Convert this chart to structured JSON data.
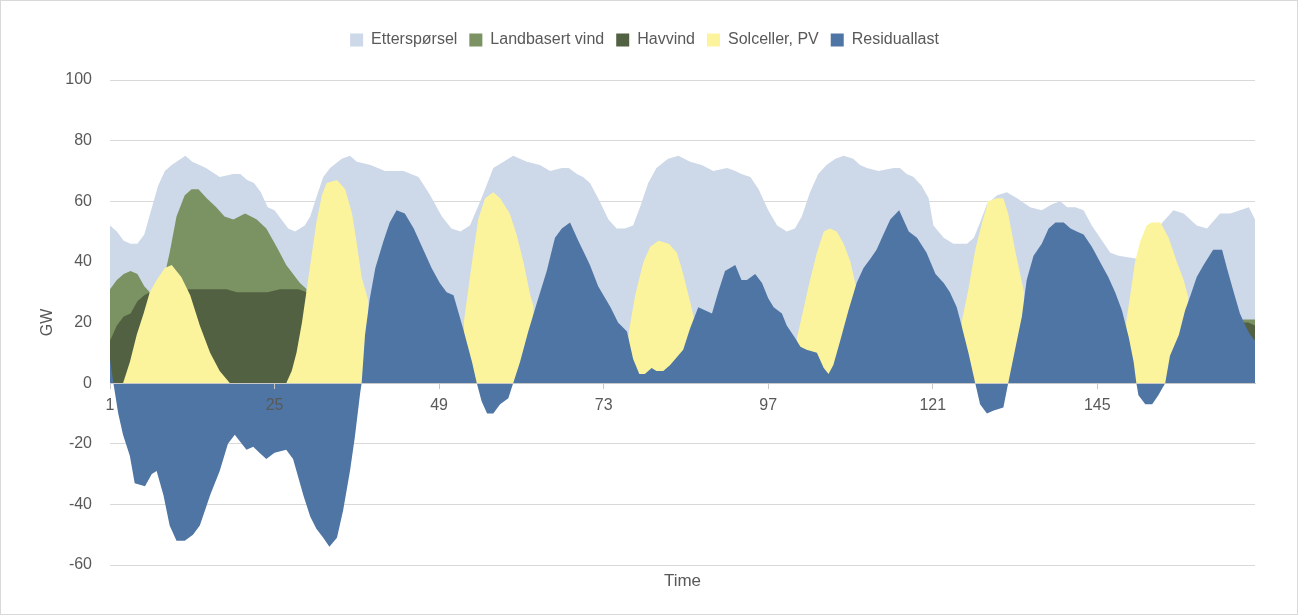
{
  "chart_data": {
    "type": "area",
    "xlabel": "Time",
    "ylabel": "GW",
    "xlim": [
      1,
      168
    ],
    "xticks": [
      1,
      25,
      49,
      73,
      97,
      121,
      145
    ],
    "ylim": [
      -60,
      100
    ],
    "yticks": [
      -60,
      -40,
      -20,
      0,
      20,
      40,
      60,
      80,
      100
    ],
    "grid": "y",
    "legend": "top",
    "series": [
      {
        "name": "Etterspørsel",
        "color": "#cdd8e8",
        "x": [
          1,
          2,
          3,
          4,
          5,
          6,
          7,
          8,
          9,
          10,
          12,
          13,
          15,
          17,
          19,
          20,
          21,
          22,
          23,
          24,
          25,
          26,
          27,
          28,
          29.4,
          30.2,
          31.2,
          32.1,
          33.1,
          34.8,
          36,
          37,
          39,
          41.1,
          43.8,
          46,
          47.7,
          49.4,
          50.8,
          52.1,
          53.5,
          55,
          55.7,
          56.9,
          58.4,
          59.8,
          61.8,
          63.7,
          65.2,
          66.9,
          67.9,
          69.1,
          70,
          71,
          72.2,
          73.7,
          74.9,
          76.1,
          77.3,
          78.3,
          79.5,
          80.7,
          82.4,
          83.9,
          85.6,
          87.3,
          89,
          91,
          92.2,
          93.1,
          94.4,
          95.6,
          97,
          98.3,
          99.7,
          100.9,
          101.9,
          103.1,
          104.3,
          105.5,
          106.8,
          108,
          109.4,
          110.4,
          111.4,
          113.1,
          115.3,
          116.2,
          117.2,
          118.2,
          119.4,
          120.4,
          121.1,
          122.6,
          124,
          126,
          127,
          127.9,
          128.9,
          130.4,
          131.8,
          133.3,
          135.2,
          136.9,
          138.4,
          139.6,
          140.6,
          141.8,
          143,
          144.2,
          145.7,
          146.9,
          148.1,
          150.8,
          154.5,
          156.1,
          157.6,
          159.5,
          161,
          162.9,
          164.4,
          165.8,
          167.1,
          168
        ],
        "values": [
          52,
          50,
          47,
          46,
          46,
          49,
          57,
          65,
          70,
          72,
          75,
          73,
          71,
          68,
          69,
          69,
          67,
          66,
          63,
          58,
          57,
          54,
          51,
          50,
          52,
          55,
          62,
          68,
          71,
          74,
          75,
          73,
          72,
          70,
          70,
          68,
          62,
          55,
          51,
          50,
          52,
          60,
          64,
          71,
          73,
          75,
          73,
          72,
          70,
          71,
          71,
          69,
          68,
          66,
          61,
          54,
          51,
          51,
          52,
          58,
          66,
          71,
          74,
          75,
          73,
          72,
          70,
          71,
          70,
          69,
          68,
          64,
          57,
          52,
          50,
          51,
          55,
          63,
          69,
          72,
          74,
          75,
          74,
          72,
          71,
          70,
          71,
          71,
          69,
          68,
          65,
          61,
          52,
          48,
          46,
          46,
          48,
          53,
          59,
          62,
          63,
          61,
          58,
          57,
          59,
          60,
          58,
          58,
          57,
          52,
          47,
          43,
          42,
          41,
          53,
          57,
          56,
          52,
          51,
          56,
          56,
          57,
          58,
          54
        ]
      },
      {
        "name": "Landbasert vind",
        "color": "#7b9262",
        "x": [
          1,
          2,
          3,
          4,
          5,
          6,
          6.8,
          8,
          9.2,
          9.7,
          10.7,
          11.9,
          12.9,
          13.9,
          15.1,
          16.5,
          17.7,
          19,
          20.7,
          22.4,
          23.8,
          25.3,
          26.7,
          27.7,
          28.7,
          29.7,
          100,
          166.2,
          167,
          168
        ],
        "values": [
          31,
          34,
          36,
          37,
          36,
          32,
          30,
          null,
          38,
          43,
          55,
          62,
          64,
          64,
          61,
          58,
          55,
          54,
          56,
          54,
          51,
          45,
          39,
          36,
          33,
          31,
          null,
          21,
          21,
          21
        ]
      },
      {
        "name": "Havvind",
        "color": "#526142",
        "x": [
          1,
          2,
          3,
          4,
          5,
          6,
          6.8,
          9,
          12.3,
          14,
          16,
          18,
          19.5,
          22,
          24,
          25.8,
          27.2,
          28.5,
          29.7,
          100,
          166.2,
          167,
          168
        ],
        "values": [
          14,
          19,
          22,
          23,
          27,
          29,
          30,
          null,
          31,
          31,
          31,
          31,
          30,
          30,
          30,
          31,
          31,
          31,
          30,
          null,
          20,
          20,
          19
        ]
      },
      {
        "name": "Solceller, PV",
        "color": "#fcf49c",
        "x": [
          2.9,
          3.9,
          4.9,
          5.9,
          6.8,
          7.8,
          9,
          10,
          11.4,
          12.7,
          14.1,
          15.6,
          17,
          18.5,
          22,
          26.7,
          27.5,
          28.2,
          29,
          29.7,
          30.4,
          31.1,
          31.9,
          32.6,
          34.1,
          35.3,
          36.3,
          37,
          37.7,
          38.7,
          45,
          52.6,
          53.8,
          54.7,
          55.7,
          56.9,
          57.9,
          59.3,
          60.3,
          61.3,
          62.3,
          62.8,
          70,
          76.6,
          77.6,
          78.8,
          79.8,
          81,
          82.5,
          83.7,
          84.6,
          85.6,
          86.2,
          95,
          101.2,
          102.1,
          103.1,
          104.1,
          105.1,
          106,
          107,
          108,
          109,
          109.8,
          118,
          125.2,
          126.2,
          127.2,
          128.2,
          129.1,
          130.3,
          131.3,
          132,
          133,
          134.3,
          142,
          149.2,
          149.8,
          150.5,
          151.3,
          152.2,
          152.9,
          154.2,
          155.4,
          156.6,
          157.6,
          158.3
        ],
        "values": [
          0,
          7,
          16,
          23,
          30,
          34,
          38,
          39,
          35,
          29,
          19,
          10,
          4,
          0,
          null,
          0,
          4,
          10,
          20,
          31,
          42,
          53,
          62,
          66,
          67,
          64,
          56,
          46,
          35,
          27,
          null,
          20,
          40,
          54,
          61,
          63,
          61,
          56,
          49,
          40,
          29,
          25,
          null,
          16,
          29,
          40,
          45,
          47,
          46,
          43,
          36,
          27,
          21,
          null,
          15,
          24,
          34,
          43,
          50,
          51,
          50,
          46,
          40,
          32,
          null,
          20,
          31,
          44,
          53,
          60,
          61,
          61,
          56,
          44,
          30,
          null,
          20,
          29,
          40,
          47,
          52,
          53,
          53,
          48,
          40,
          34,
          28
        ]
      },
      {
        "name": "Residuallast",
        "color": "#4e75a4",
        "x": [
          1,
          1.5,
          2.2,
          2.9,
          3.9,
          4.6,
          6.1,
          7.1,
          7.8,
          8.8,
          9.7,
          10.7,
          11.9,
          13.1,
          14.1,
          15.6,
          17,
          18.2,
          19.2,
          20.9,
          21.9,
          22.8,
          23.8,
          25,
          26.7,
          27.7,
          28.2,
          29.2,
          30.2,
          31.1,
          32.1,
          33,
          34.1,
          35,
          36,
          36.7,
          37.5,
          37.7,
          38.2,
          38.9,
          39.7,
          40.9,
          41.8,
          42.8,
          44,
          45.3,
          46.7,
          47.9,
          49.1,
          50.1,
          51.1,
          52.5,
          53.8,
          54.5,
          55.2,
          56,
          56.9,
          57.9,
          59.1,
          59.8,
          60.8,
          62,
          63.2,
          64.7,
          65.9,
          66.9,
          68.1,
          69.3,
          71,
          72.2,
          74,
          75.1,
          76.4,
          77.3,
          78.2,
          79,
          80,
          80.7,
          81.7,
          82.7,
          84.6,
          85.6,
          86.8,
          88.8,
          89.7,
          90.7,
          92.2,
          93.1,
          93.9,
          95.1,
          96.1,
          97,
          97.8,
          99,
          99.7,
          100.9,
          101.7,
          102.6,
          104.1,
          105.1,
          105.8,
          106.5,
          107.5,
          108.7,
          109.9,
          110.9,
          111.9,
          112.8,
          113.8,
          114.8,
          116.1,
          117.5,
          118.7,
          120.1,
          121.4,
          122.6,
          123.5,
          124.5,
          125.2,
          126.2,
          127.2,
          127.9,
          128.9,
          129.9,
          131.3,
          132,
          133,
          134,
          134.7,
          135.7,
          136.9,
          137.9,
          138.9,
          139.6,
          140.1,
          141.1,
          142,
          143,
          144.2,
          145.4,
          146.6,
          147.6,
          148.6,
          149.6,
          150.3,
          150.7,
          151,
          152,
          153,
          153.9,
          154.9,
          155.6,
          156.9,
          157.8,
          158.6,
          159.5,
          160.5,
          161.9,
          163.2,
          163.9,
          164.9,
          165.8,
          166.8,
          167.3,
          168
        ],
        "values": [
          8,
          0,
          -10,
          -17,
          -24,
          -33,
          -34,
          -30,
          -29,
          -37,
          -47,
          -52,
          -52,
          -50,
          -47,
          -37,
          -29,
          -20,
          -17,
          -22,
          -21,
          -23,
          -25,
          -23,
          -22,
          -25,
          -29,
          -37,
          -44,
          -48,
          -51,
          -54,
          -51,
          -42,
          -29,
          -18,
          -3,
          0,
          16,
          28,
          38,
          47,
          53,
          57,
          56,
          51,
          44,
          38,
          33,
          30,
          29,
          18,
          7,
          0,
          -6,
          -10,
          -10,
          -7,
          -5,
          0,
          7,
          17,
          26,
          37,
          48,
          51,
          53,
          47,
          39,
          32,
          25,
          20,
          17,
          8,
          3,
          3,
          5,
          4,
          4,
          6,
          11,
          18,
          25,
          23,
          30,
          37,
          39,
          34,
          34,
          36,
          33,
          28,
          25,
          23,
          19,
          15,
          12,
          11,
          10,
          5,
          3,
          6,
          14,
          24,
          33,
          38,
          41,
          44,
          49,
          54,
          57,
          50,
          48,
          43,
          36,
          33,
          30,
          25,
          19,
          10,
          0,
          -7,
          -10,
          -9,
          -8,
          0,
          11,
          22,
          34,
          42,
          46,
          51,
          53,
          53,
          53,
          51,
          50,
          49,
          45,
          40,
          35,
          30,
          24,
          15,
          7,
          0,
          -4,
          -7,
          -7,
          -4,
          0,
          9,
          16,
          24,
          29,
          35,
          39,
          44,
          44,
          38,
          30,
          23,
          18,
          16,
          14
        ]
      }
    ]
  }
}
